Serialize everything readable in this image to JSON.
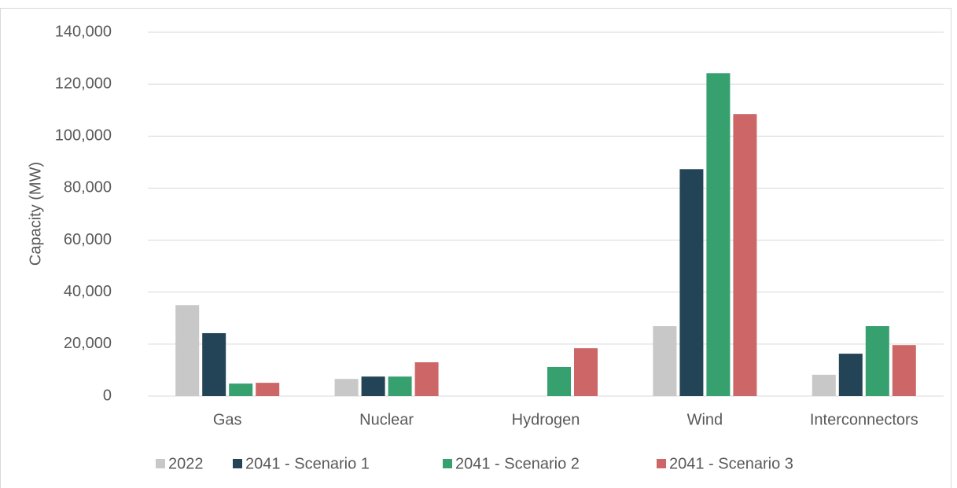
{
  "chart_data": {
    "type": "bar",
    "y_label": "Capacity (MW)",
    "categories": [
      "Gas",
      "Nuclear",
      "Hydrogen",
      "Wind",
      "Interconnectors"
    ],
    "series": [
      {
        "name": "2022",
        "color": "#c8c8c8",
        "values": [
          35000,
          6600,
          0,
          26900,
          8200
        ]
      },
      {
        "name": "2041 - Scenario 1",
        "color": "#234457",
        "values": [
          24200,
          7500,
          0,
          87300,
          16300
        ]
      },
      {
        "name": "2041 - Scenario 2",
        "color": "#36a06f",
        "values": [
          4800,
          7500,
          11200,
          124200,
          26900
        ]
      },
      {
        "name": "2041 - Scenario 3",
        "color": "#cd6767",
        "values": [
          5100,
          13000,
          18400,
          108500,
          19600
        ]
      }
    ],
    "ylim": [
      0,
      140000
    ],
    "yticks": [
      0,
      {
        "value": 20000,
        "label": "20,000"
      },
      {
        "value": 40000,
        "label": "40,000"
      },
      {
        "value": 60000,
        "label": "60,000"
      },
      {
        "value": 80000,
        "label": "80,000"
      },
      {
        "value": 100000,
        "label": "100,000"
      },
      {
        "value": 120000,
        "label": "120,000"
      },
      {
        "value": 140000,
        "label": "140,000"
      }
    ],
    "grid": true,
    "legend": "bottom"
  }
}
